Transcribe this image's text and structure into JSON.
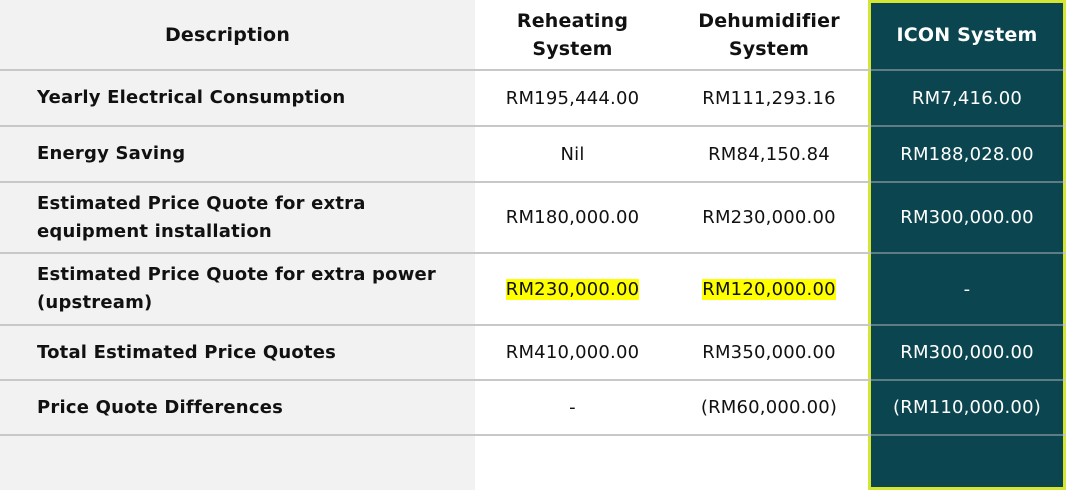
{
  "headers": {
    "description": "Description",
    "reheating": "Reheating System",
    "dehumidifier": "Dehumidifier System",
    "icon": "ICON System"
  },
  "rows": [
    {
      "description": "Yearly Electrical Consumption",
      "reheating": "RM195,444.00",
      "dehumidifier": "RM111,293.16",
      "icon": "RM7,416.00"
    },
    {
      "description": "Energy Saving",
      "reheating": "Nil",
      "dehumidifier": "RM84,150.84",
      "icon": "RM188,028.00"
    },
    {
      "description": "Estimated Price Quote for extra equipment installation",
      "reheating": "RM180,000.00",
      "dehumidifier": "RM230,000.00",
      "icon": "RM300,000.00"
    },
    {
      "description": "Estimated Price Quote for extra power (upstream)",
      "reheating": "RM230,000.00",
      "dehumidifier": "RM120,000.00",
      "icon": "-"
    },
    {
      "description": "Total Estimated Price Quotes",
      "reheating": "RM410,000.00",
      "dehumidifier": "RM350,000.00",
      "icon": "RM300,000.00"
    },
    {
      "description": "Price Quote Differences",
      "reheating": "-",
      "dehumidifier": "(RM60,000.00)",
      "icon": "(RM110,000.00)"
    }
  ],
  "colors": {
    "icon_column_bg": "#0b4650",
    "icon_column_border": "#d4e632",
    "highlight": "#ffff00",
    "description_bg": "#f2f2f2"
  }
}
